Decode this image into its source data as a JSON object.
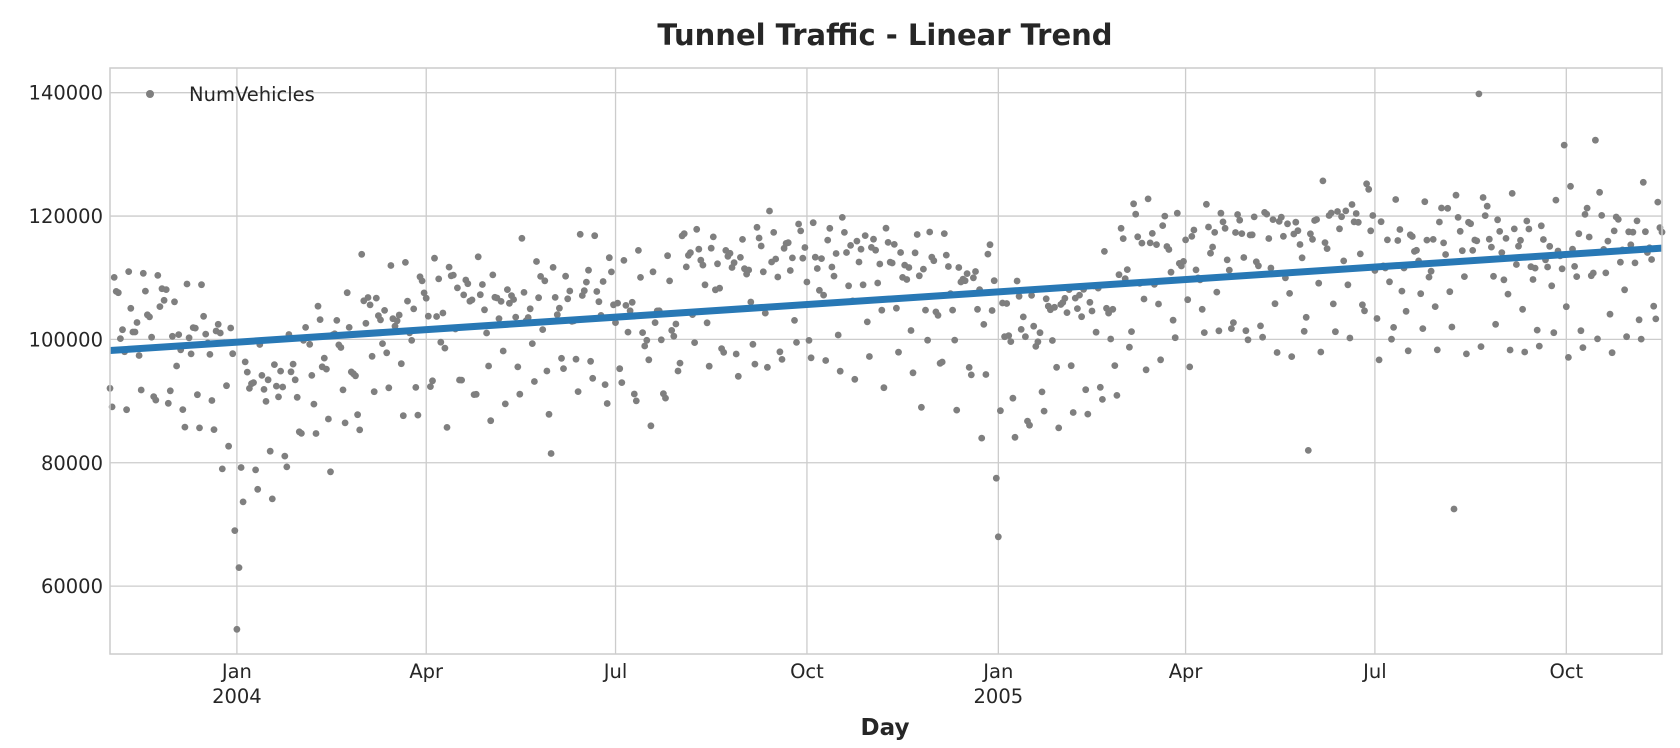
{
  "chart_data": {
    "type": "scatter",
    "title": "Tunnel Traffic - Linear Trend",
    "xlabel": "Day",
    "ylabel": "",
    "x_range": [
      "2003-11-01",
      "2005-11-16"
    ],
    "ylim": [
      49000,
      144000
    ],
    "grid": true,
    "legend_position": "top-left",
    "y_ticks": [
      {
        "value": 60000,
        "label": "60000"
      },
      {
        "value": 80000,
        "label": "80000"
      },
      {
        "value": 100000,
        "label": "100000"
      },
      {
        "value": 120000,
        "label": "120000"
      },
      {
        "value": 140000,
        "label": "140000"
      }
    ],
    "x_ticks": [
      {
        "date": "2004-01-01",
        "label": "Jan",
        "sublabel": "2004"
      },
      {
        "date": "2004-04-01",
        "label": "Apr",
        "sublabel": ""
      },
      {
        "date": "2004-07-01",
        "label": "Jul",
        "sublabel": ""
      },
      {
        "date": "2004-10-01",
        "label": "Oct",
        "sublabel": ""
      },
      {
        "date": "2005-01-01",
        "label": "Jan",
        "sublabel": "2005"
      },
      {
        "date": "2005-04-01",
        "label": "Apr",
        "sublabel": ""
      },
      {
        "date": "2005-07-01",
        "label": "Jul",
        "sublabel": ""
      },
      {
        "date": "2005-10-01",
        "label": "Oct",
        "sublabel": ""
      }
    ],
    "series": [
      {
        "name": "NumVehicles",
        "kind": "scatter",
        "color": "#7f7f7f",
        "x_start": "2003-11-01",
        "x_step_days": 1,
        "monthly_levels": [
          {
            "month": "2003-11",
            "level": 103000
          },
          {
            "month": "2003-12",
            "level": 98000
          },
          {
            "month": "2004-01",
            "level": 92000
          },
          {
            "month": "2004-02",
            "level": 97000
          },
          {
            "month": "2004-03",
            "level": 103000
          },
          {
            "month": "2004-04",
            "level": 104000
          },
          {
            "month": "2004-05",
            "level": 105000
          },
          {
            "month": "2004-06",
            "level": 106000
          },
          {
            "month": "2004-07",
            "level": 103000
          },
          {
            "month": "2004-08",
            "level": 110000
          },
          {
            "month": "2004-09",
            "level": 111000
          },
          {
            "month": "2004-10",
            "level": 112000
          },
          {
            "month": "2004-11",
            "level": 110000
          },
          {
            "month": "2004-12",
            "level": 107000
          },
          {
            "month": "2005-01",
            "level": 100000
          },
          {
            "month": "2005-02",
            "level": 103000
          },
          {
            "month": "2005-03",
            "level": 112000
          },
          {
            "month": "2005-04",
            "level": 113000
          },
          {
            "month": "2005-05",
            "level": 114000
          },
          {
            "month": "2005-06",
            "level": 116000
          },
          {
            "month": "2005-07",
            "level": 112000
          },
          {
            "month": "2005-08",
            "level": 116000
          },
          {
            "month": "2005-09",
            "level": 114000
          },
          {
            "month": "2005-10",
            "level": 114000
          },
          {
            "month": "2005-11",
            "level": 114000
          }
        ],
        "weekday_offsets": [
          7000,
          4000,
          2000,
          0,
          1000,
          -9000,
          -14000
        ],
        "outliers": [
          {
            "date": "2003-12-25",
            "value": 79000
          },
          {
            "date": "2003-12-31",
            "value": 69000
          },
          {
            "date": "2004-01-01",
            "value": 53000
          },
          {
            "date": "2004-01-02",
            "value": 63000
          },
          {
            "date": "2004-05-31",
            "value": 81500
          },
          {
            "date": "2004-07-04",
            "value": 93000
          },
          {
            "date": "2004-09-06",
            "value": 96000
          },
          {
            "date": "2004-11-25",
            "value": 89000
          },
          {
            "date": "2004-12-24",
            "value": 84000
          },
          {
            "date": "2004-12-31",
            "value": 77500
          },
          {
            "date": "2005-01-01",
            "value": 68000
          },
          {
            "date": "2005-05-30",
            "value": 82000
          },
          {
            "date": "2005-08-08",
            "value": 72500
          },
          {
            "date": "2005-08-20",
            "value": 139800
          },
          {
            "date": "2005-09-30",
            "value": 131500
          },
          {
            "date": "2005-10-15",
            "value": 132300
          }
        ]
      },
      {
        "name": "Linear Trend",
        "kind": "line",
        "color": "#2878b5",
        "points": [
          {
            "x": "2003-11-01",
            "y": 98200
          },
          {
            "x": "2005-11-16",
            "y": 114800
          }
        ]
      }
    ],
    "legend": [
      {
        "label": "NumVehicles",
        "marker": "dot",
        "color": "#7f7f7f"
      }
    ]
  }
}
